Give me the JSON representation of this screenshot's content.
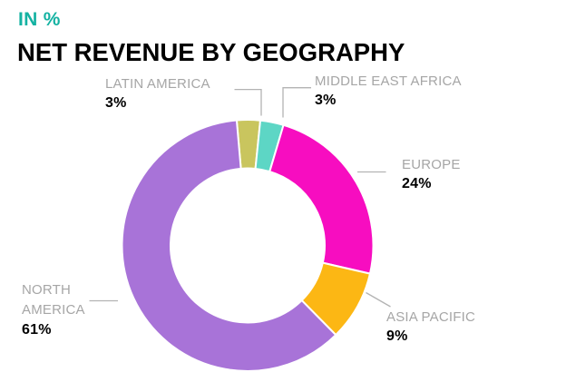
{
  "header": {
    "kicker": "IN %",
    "title": "NET REVENUE BY GEOGRAPHY"
  },
  "colors": {
    "background": "#ffffff",
    "kicker_text": "#14b2a2",
    "title_text": "#000000",
    "category_label_text": "#a6a6a6",
    "value_label_text": "#000000",
    "leader_line": "#b3b3b3",
    "segment_border": "#ffffff"
  },
  "chart_data": {
    "type": "pie",
    "subtype": "donut",
    "title": "NET REVENUE BY GEOGRAPHY",
    "subtitle": "IN %",
    "unit": "%",
    "start_angle_deg": -5,
    "direction": "clockwise",
    "legend_position": "callouts",
    "segments": [
      {
        "label": "LATIN AMERICA",
        "value": 3,
        "value_label": "3%",
        "color": "#c9c55e"
      },
      {
        "label": "MIDDLE EAST AFRICA",
        "value": 3,
        "value_label": "3%",
        "color": "#5dd6c5"
      },
      {
        "label": "EUROPE",
        "value": 24,
        "value_label": "24%",
        "color": "#f70dc0"
      },
      {
        "label": "ASIA PACIFIC",
        "value": 9,
        "value_label": "9%",
        "color": "#fcb714"
      },
      {
        "label": "NORTH AMERICA",
        "value": 61,
        "value_label": "61%",
        "color": "#a873d8"
      }
    ]
  }
}
